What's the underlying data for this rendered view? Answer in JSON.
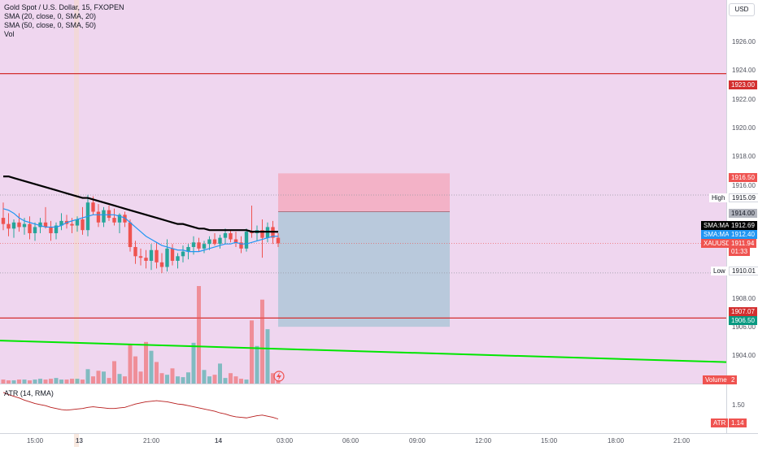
{
  "header": {
    "symbol_title": "Gold Spot / U.S. Dollar, 15, FXOPEN",
    "indicators": [
      "SMA (20, close, 0, SMA, 20)",
      "SMA (50, close, 0, SMA, 50)",
      "Vol"
    ],
    "currency_button": "USD",
    "atr_label": "ATR (14, RMA)"
  },
  "price_axis": {
    "ticks": [
      "1926.00",
      "1924.00",
      "1922.00",
      "1920.00",
      "1918.00",
      "1916.00",
      "1908.00",
      "1906.00",
      "1904.00"
    ],
    "atr_ticks": [
      "1.50",
      "1.00"
    ]
  },
  "time_axis": {
    "ticks": [
      "15:00",
      "13",
      "21:00",
      "14",
      "03:00",
      "06:00",
      "09:00",
      "12:00",
      "15:00",
      "18:00",
      "21:00"
    ]
  },
  "tags": {
    "resistance": "1923.00",
    "stop": "1916.50",
    "high_label": "High",
    "high_value": "1915.09",
    "entry": "1914.00",
    "sma50_label": "SMA:MA",
    "sma50_value": "1912.69",
    "sma20_label": "SMA:MA",
    "sma20_value": "1912.40",
    "symbol": "XAUUSD",
    "last_price": "1911.94",
    "countdown": "01:33",
    "low_label": "Low",
    "low_value": "1910.01",
    "support": "1907.07",
    "target": "1906.50",
    "volume_label": "Volume",
    "volume_value": "2",
    "atr_label": "ATR",
    "atr_value": "1.14"
  },
  "colors": {
    "background": "#efd6ef",
    "bull": "#26a69a",
    "bear": "#ef5350",
    "sma20": "#2196f3",
    "sma50": "#000000",
    "trendline": "#00e600",
    "hline": "#d32f2f",
    "stop_zone": "#f4a9bd",
    "target_zone": "#b3c8d9"
  },
  "chart_data": {
    "type": "candlestick",
    "symbol": "XAUUSD",
    "timeframe": "15",
    "ylim": [
      1902.8,
      1927.8
    ],
    "horizontal_levels": [
      1923.0,
      1907.07
    ],
    "trendline": {
      "from": 1905.6,
      "to": 1904.2
    },
    "position": {
      "stop": 1916.5,
      "entry": 1914.0,
      "target": 1906.5
    },
    "candles": [
      {
        "o": 1913.6,
        "h": 1914.6,
        "l": 1912.8,
        "c": 1913.2
      },
      {
        "o": 1913.2,
        "h": 1913.9,
        "l": 1912.4,
        "c": 1912.9
      },
      {
        "o": 1912.9,
        "h": 1913.5,
        "l": 1912.3,
        "c": 1913.3
      },
      {
        "o": 1913.3,
        "h": 1913.9,
        "l": 1912.7,
        "c": 1913.0
      },
      {
        "o": 1913.0,
        "h": 1913.6,
        "l": 1912.5,
        "c": 1913.2
      },
      {
        "o": 1913.2,
        "h": 1913.7,
        "l": 1912.2,
        "c": 1912.6
      },
      {
        "o": 1912.6,
        "h": 1913.3,
        "l": 1912.1,
        "c": 1913.0
      },
      {
        "o": 1913.0,
        "h": 1913.6,
        "l": 1912.6,
        "c": 1913.3
      },
      {
        "o": 1913.3,
        "h": 1914.3,
        "l": 1912.9,
        "c": 1913.0
      },
      {
        "o": 1913.0,
        "h": 1913.4,
        "l": 1912.1,
        "c": 1912.6
      },
      {
        "o": 1912.6,
        "h": 1913.3,
        "l": 1912.2,
        "c": 1913.1
      },
      {
        "o": 1913.1,
        "h": 1913.9,
        "l": 1912.8,
        "c": 1913.4
      },
      {
        "o": 1913.4,
        "h": 1913.8,
        "l": 1912.9,
        "c": 1913.2
      },
      {
        "o": 1913.2,
        "h": 1913.6,
        "l": 1912.6,
        "c": 1913.1
      },
      {
        "o": 1913.1,
        "h": 1913.7,
        "l": 1912.7,
        "c": 1913.5
      },
      {
        "o": 1913.5,
        "h": 1914.3,
        "l": 1912.5,
        "c": 1912.8
      },
      {
        "o": 1912.8,
        "h": 1915.1,
        "l": 1912.4,
        "c": 1914.6
      },
      {
        "o": 1914.6,
        "h": 1915.0,
        "l": 1913.8,
        "c": 1914.0
      },
      {
        "o": 1914.0,
        "h": 1914.5,
        "l": 1913.0,
        "c": 1913.3
      },
      {
        "o": 1913.3,
        "h": 1914.3,
        "l": 1913.0,
        "c": 1914.1
      },
      {
        "o": 1914.1,
        "h": 1914.4,
        "l": 1913.4,
        "c": 1913.6
      },
      {
        "o": 1913.6,
        "h": 1914.2,
        "l": 1913.1,
        "c": 1913.3
      },
      {
        "o": 1913.3,
        "h": 1913.9,
        "l": 1912.6,
        "c": 1913.8
      },
      {
        "o": 1913.8,
        "h": 1914.0,
        "l": 1913.0,
        "c": 1913.3
      },
      {
        "o": 1913.3,
        "h": 1913.5,
        "l": 1911.4,
        "c": 1911.7
      },
      {
        "o": 1911.7,
        "h": 1912.1,
        "l": 1910.6,
        "c": 1911.1
      },
      {
        "o": 1911.1,
        "h": 1911.6,
        "l": 1910.5,
        "c": 1911.0
      },
      {
        "o": 1911.0,
        "h": 1911.5,
        "l": 1910.3,
        "c": 1910.8
      },
      {
        "o": 1910.8,
        "h": 1911.9,
        "l": 1910.2,
        "c": 1911.5
      },
      {
        "o": 1911.5,
        "h": 1912.0,
        "l": 1910.3,
        "c": 1910.7
      },
      {
        "o": 1910.7,
        "h": 1911.3,
        "l": 1910.0,
        "c": 1910.4
      },
      {
        "o": 1910.4,
        "h": 1912.2,
        "l": 1910.1,
        "c": 1911.6
      },
      {
        "o": 1911.6,
        "h": 1911.9,
        "l": 1910.5,
        "c": 1910.8
      },
      {
        "o": 1910.8,
        "h": 1911.3,
        "l": 1910.3,
        "c": 1911.1
      },
      {
        "o": 1911.1,
        "h": 1911.8,
        "l": 1910.7,
        "c": 1911.4
      },
      {
        "o": 1911.4,
        "h": 1911.9,
        "l": 1910.9,
        "c": 1911.7
      },
      {
        "o": 1911.7,
        "h": 1912.4,
        "l": 1911.2,
        "c": 1912.0
      },
      {
        "o": 1912.0,
        "h": 1912.3,
        "l": 1911.4,
        "c": 1911.6
      },
      {
        "o": 1911.6,
        "h": 1912.1,
        "l": 1911.3,
        "c": 1911.9
      },
      {
        "o": 1911.9,
        "h": 1912.4,
        "l": 1911.5,
        "c": 1912.2
      },
      {
        "o": 1912.2,
        "h": 1912.6,
        "l": 1911.8,
        "c": 1911.9
      },
      {
        "o": 1911.9,
        "h": 1912.5,
        "l": 1911.6,
        "c": 1912.3
      },
      {
        "o": 1912.3,
        "h": 1912.9,
        "l": 1911.9,
        "c": 1912.6
      },
      {
        "o": 1912.6,
        "h": 1912.8,
        "l": 1912.0,
        "c": 1912.2
      },
      {
        "o": 1912.2,
        "h": 1912.7,
        "l": 1911.7,
        "c": 1912.0
      },
      {
        "o": 1912.0,
        "h": 1912.4,
        "l": 1911.3,
        "c": 1911.6
      },
      {
        "o": 1911.6,
        "h": 1912.9,
        "l": 1911.4,
        "c": 1912.7
      },
      {
        "o": 1912.7,
        "h": 1914.4,
        "l": 1912.3,
        "c": 1912.6
      },
      {
        "o": 1912.6,
        "h": 1913.1,
        "l": 1912.1,
        "c": 1912.8
      },
      {
        "o": 1912.8,
        "h": 1913.5,
        "l": 1911.0,
        "c": 1912.3
      },
      {
        "o": 1912.3,
        "h": 1913.3,
        "l": 1912.0,
        "c": 1913.0
      },
      {
        "o": 1913.0,
        "h": 1913.4,
        "l": 1911.9,
        "c": 1912.3
      },
      {
        "o": 1912.3,
        "h": 1912.6,
        "l": 1911.7,
        "c": 1911.94
      }
    ],
    "sma20": [
      1914.2,
      1914.1,
      1913.9,
      1913.6,
      1913.4,
      1913.3,
      1913.2,
      1913.1,
      1913.0,
      1913.0,
      1913.0,
      1913.1,
      1913.3,
      1913.4,
      1913.5,
      1913.6,
      1913.7,
      1913.8,
      1913.8,
      1913.8,
      1913.8,
      1913.8,
      1913.7,
      1913.6,
      1913.3,
      1913.0,
      1912.7,
      1912.4,
      1912.2,
      1912.0,
      1911.8,
      1911.7,
      1911.6,
      1911.5,
      1911.5,
      1911.4,
      1911.4,
      1911.4,
      1911.5,
      1911.6,
      1911.7,
      1911.8,
      1911.9,
      1911.9,
      1912.0,
      1911.9,
      1911.9,
      1912.0,
      1912.1,
      1912.2,
      1912.3,
      1912.4,
      1912.4
    ],
    "sma50": [
      1916.3,
      1916.3,
      1916.2,
      1916.1,
      1916.0,
      1915.9,
      1915.8,
      1915.7,
      1915.6,
      1915.5,
      1915.4,
      1915.3,
      1915.2,
      1915.1,
      1915.0,
      1914.9,
      1914.9,
      1914.8,
      1914.7,
      1914.6,
      1914.5,
      1914.4,
      1914.3,
      1914.2,
      1914.1,
      1914.0,
      1913.9,
      1913.8,
      1913.7,
      1913.6,
      1913.5,
      1913.4,
      1913.3,
      1913.2,
      1913.2,
      1913.1,
      1913.0,
      1912.9,
      1912.9,
      1912.8,
      1912.8,
      1912.8,
      1912.8,
      1912.8,
      1912.8,
      1912.8,
      1912.8,
      1912.7,
      1912.7,
      1912.7,
      1912.7,
      1912.7,
      1912.69
    ],
    "volume": [
      0.5,
      0.4,
      0.4,
      0.5,
      0.5,
      0.4,
      0.5,
      0.6,
      0.5,
      0.6,
      0.7,
      0.5,
      0.5,
      0.6,
      0.6,
      0.5,
      1.8,
      0.9,
      1.6,
      1.5,
      0.7,
      2.8,
      1.2,
      0.9,
      4.9,
      3.4,
      1.5,
      5.2,
      4.1,
      2.7,
      1.3,
      1.1,
      1.9,
      0.9,
      0.8,
      1.4,
      5.1,
      12.2,
      1.7,
      0.9,
      1.1,
      2.5,
      0.7,
      1.3,
      0.9,
      0.6,
      0.5,
      7.9,
      4.7,
      10.5,
      6.8,
      1.3,
      0.4
    ],
    "atr": [
      1.62,
      1.58,
      1.55,
      1.52,
      1.48,
      1.45,
      1.42,
      1.4,
      1.38,
      1.35,
      1.33,
      1.31,
      1.3,
      1.31,
      1.32,
      1.33,
      1.35,
      1.36,
      1.35,
      1.34,
      1.33,
      1.33,
      1.34,
      1.35,
      1.38,
      1.41,
      1.43,
      1.45,
      1.46,
      1.47,
      1.46,
      1.45,
      1.43,
      1.41,
      1.4,
      1.38,
      1.36,
      1.34,
      1.32,
      1.3,
      1.28,
      1.25,
      1.23,
      1.2,
      1.18,
      1.17,
      1.16,
      1.18,
      1.2,
      1.21,
      1.19,
      1.17,
      1.14
    ]
  }
}
